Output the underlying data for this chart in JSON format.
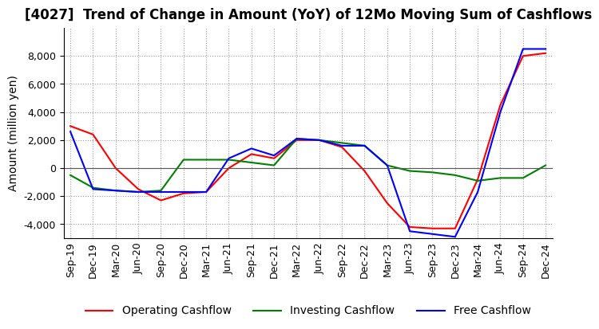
{
  "title": "[4027]  Trend of Change in Amount (YoY) of 12Mo Moving Sum of Cashflows",
  "ylabel": "Amount (million yen)",
  "x_labels": [
    "Sep-19",
    "Dec-19",
    "Mar-20",
    "Jun-20",
    "Sep-20",
    "Dec-20",
    "Mar-21",
    "Jun-21",
    "Sep-21",
    "Dec-21",
    "Mar-22",
    "Jun-22",
    "Sep-22",
    "Dec-22",
    "Mar-23",
    "Jun-23",
    "Sep-23",
    "Dec-23",
    "Mar-24",
    "Jun-24",
    "Sep-24",
    "Dec-24"
  ],
  "operating": [
    3000,
    2400,
    0,
    -1500,
    -2300,
    -1800,
    -1700,
    0,
    1000,
    700,
    2000,
    2000,
    1500,
    -200,
    -2500,
    -4200,
    -4300,
    -4300,
    -800,
    4500,
    8000,
    8200
  ],
  "investing": [
    -500,
    -1400,
    -1600,
    -1700,
    -1600,
    600,
    600,
    600,
    400,
    200,
    2100,
    2000,
    1800,
    1600,
    200,
    -200,
    -300,
    -500,
    -900,
    -700,
    -700,
    200
  ],
  "free": [
    2600,
    -1500,
    -1600,
    -1700,
    -1700,
    -1700,
    -1700,
    700,
    1400,
    900,
    2100,
    2000,
    1600,
    1600,
    200,
    -4500,
    -4700,
    -4900,
    -1700,
    4000,
    8500,
    8500
  ],
  "ylim": [
    -5000,
    10000
  ],
  "yticks": [
    -4000,
    -2000,
    0,
    2000,
    4000,
    6000,
    8000
  ],
  "colors": {
    "operating": "#ff0000",
    "investing": "#008000",
    "free": "#0000ff"
  },
  "legend_labels": [
    "Operating Cashflow",
    "Investing Cashflow",
    "Free Cashflow"
  ],
  "title_fontsize": 12,
  "label_fontsize": 10,
  "tick_fontsize": 9,
  "linewidth": 1.5
}
